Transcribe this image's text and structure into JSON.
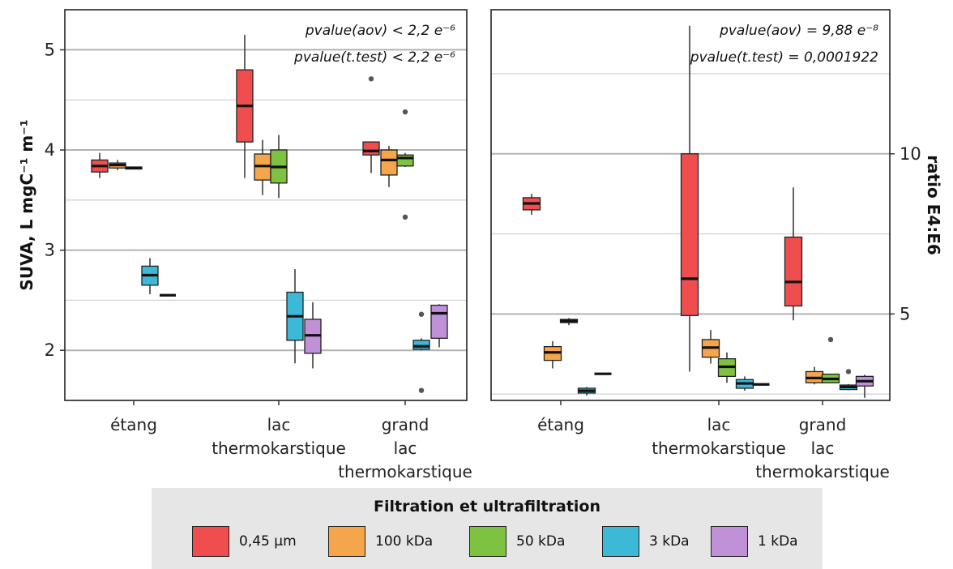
{
  "chart_data": [
    {
      "type": "box",
      "panel": "left",
      "ylabel": "SUVA, L mgC⁻¹ m⁻¹",
      "ylim": [
        1.5,
        5.4
      ],
      "yticks": [
        2,
        3,
        4,
        5
      ],
      "categories": [
        "étang",
        "lac thermokarstique",
        "grand lac thermokarstique"
      ],
      "annotations": [
        "pvalue(aov) < 2,2 e⁻⁶",
        "pvalue(t.test) < 2,2 e⁻⁶"
      ],
      "series": [
        {
          "name": "0,45 µm",
          "color": "#f04e4e",
          "boxes": [
            {
              "min": 3.72,
              "q1": 3.78,
              "median": 3.84,
              "q3": 3.9,
              "max": 3.97,
              "outliers": []
            },
            {
              "min": 3.72,
              "q1": 4.08,
              "median": 4.44,
              "q3": 4.8,
              "max": 5.15,
              "outliers": []
            },
            {
              "min": 3.77,
              "q1": 3.95,
              "median": 3.99,
              "q3": 4.08,
              "max": 4.08,
              "outliers": [
                4.71
              ]
            }
          ]
        },
        {
          "name": "100 kDa",
          "color": "#f5a54a",
          "boxes": [
            {
              "min": 3.8,
              "q1": 3.82,
              "median": 3.85,
              "q3": 3.87,
              "max": 3.9,
              "outliers": []
            },
            {
              "min": 3.55,
              "q1": 3.7,
              "median": 3.84,
              "q3": 3.96,
              "max": 4.1,
              "outliers": []
            },
            {
              "min": 3.63,
              "q1": 3.75,
              "median": 3.9,
              "q3": 4.0,
              "max": 4.04,
              "outliers": []
            }
          ]
        },
        {
          "name": "50 kDa",
          "color": "#7ec242",
          "boxes": [
            {
              "min": 3.81,
              "q1": 3.81,
              "median": 3.82,
              "q3": 3.83,
              "max": 3.83,
              "outliers": []
            },
            {
              "min": 3.52,
              "q1": 3.67,
              "median": 3.83,
              "q3": 4.0,
              "max": 4.15,
              "outliers": []
            },
            {
              "min": 3.83,
              "q1": 3.84,
              "median": 3.92,
              "q3": 3.95,
              "max": 3.97,
              "outliers": [
                4.38,
                3.33
              ]
            }
          ]
        },
        {
          "name": "3 kDa",
          "color": "#3bb9d7",
          "boxes": [
            {
              "min": 2.56,
              "q1": 2.65,
              "median": 2.75,
              "q3": 2.84,
              "max": 2.92,
              "outliers": []
            },
            {
              "min": 1.87,
              "q1": 2.1,
              "median": 2.34,
              "q3": 2.58,
              "max": 2.81,
              "outliers": []
            },
            {
              "min": 2.0,
              "q1": 2.01,
              "median": 2.04,
              "q3": 2.1,
              "max": 2.12,
              "outliers": [
                2.36,
                1.6
              ]
            }
          ]
        },
        {
          "name": "1 kDa",
          "color": "#c191d7",
          "boxes": [
            {
              "min": 2.55,
              "q1": 2.55,
              "median": 2.55,
              "q3": 2.55,
              "max": 2.55,
              "outliers": []
            },
            {
              "min": 1.82,
              "q1": 1.97,
              "median": 2.15,
              "q3": 2.31,
              "max": 2.48,
              "outliers": []
            },
            {
              "min": 2.03,
              "q1": 2.12,
              "median": 2.37,
              "q3": 2.45,
              "max": 2.46,
              "outliers": []
            }
          ]
        }
      ]
    },
    {
      "type": "box",
      "panel": "right",
      "ylabel": "ratio E4:E6",
      "ylim": [
        2.3,
        14.5
      ],
      "yticks": [
        5,
        10
      ],
      "categories": [
        "étang",
        "lac thermokarstique",
        "grand lac thermokarstique"
      ],
      "annotations": [
        "pvalue(aov) = 9,88 e⁻⁸",
        "pvalue(t.test) = 0,0001922"
      ],
      "series": [
        {
          "name": "0,45 µm",
          "color": "#f04e4e",
          "boxes": [
            {
              "min": 8.1,
              "q1": 8.25,
              "median": 8.45,
              "q3": 8.63,
              "max": 8.75,
              "outliers": []
            },
            {
              "min": 3.2,
              "q1": 4.95,
              "median": 6.1,
              "q3": 10.0,
              "max": 14.0,
              "outliers": []
            },
            {
              "min": 4.8,
              "q1": 5.25,
              "median": 6.0,
              "q3": 7.4,
              "max": 8.95,
              "outliers": []
            }
          ]
        },
        {
          "name": "100 kDa",
          "color": "#f5a54a",
          "boxes": [
            {
              "min": 3.3,
              "q1": 3.55,
              "median": 3.8,
              "q3": 3.98,
              "max": 4.15,
              "outliers": []
            },
            {
              "min": 3.45,
              "q1": 3.65,
              "median": 3.95,
              "q3": 4.2,
              "max": 4.5,
              "outliers": []
            },
            {
              "min": 2.8,
              "q1": 2.85,
              "median": 3.0,
              "q3": 3.2,
              "max": 3.35,
              "outliers": []
            }
          ]
        },
        {
          "name": "50 kDa",
          "color": "#7ec242",
          "boxes": [
            {
              "min": 4.65,
              "q1": 4.73,
              "median": 4.78,
              "q3": 4.83,
              "max": 4.87,
              "outliers": []
            },
            {
              "min": 2.85,
              "q1": 3.05,
              "median": 3.35,
              "q3": 3.6,
              "max": 3.8,
              "outliers": []
            },
            {
              "min": 2.85,
              "q1": 2.85,
              "median": 2.97,
              "q3": 3.12,
              "max": 3.12,
              "outliers": [
                4.2
              ]
            }
          ]
        },
        {
          "name": "3 kDa",
          "color": "#3bb9d7",
          "boxes": [
            {
              "min": 2.45,
              "q1": 2.53,
              "median": 2.6,
              "q3": 2.68,
              "max": 2.72,
              "outliers": []
            },
            {
              "min": 2.6,
              "q1": 2.68,
              "median": 2.83,
              "q3": 2.95,
              "max": 3.05,
              "outliers": []
            },
            {
              "min": 2.62,
              "q1": 2.64,
              "median": 2.72,
              "q3": 2.78,
              "max": 2.81,
              "outliers": [
                3.2
              ]
            }
          ]
        },
        {
          "name": "1 kDa",
          "color": "#c191d7",
          "boxes": [
            {
              "min": 3.13,
              "q1": 3.13,
              "median": 3.13,
              "q3": 3.13,
              "max": 3.13,
              "outliers": []
            },
            {
              "min": 2.8,
              "q1": 2.8,
              "median": 2.8,
              "q3": 2.8,
              "max": 2.8,
              "outliers": []
            },
            {
              "min": 2.38,
              "q1": 2.75,
              "median": 2.9,
              "q3": 3.05,
              "max": 3.1,
              "outliers": []
            }
          ]
        }
      ]
    }
  ],
  "legend": {
    "title": "Filtration et ultrafiltration",
    "items": [
      {
        "label": "0,45 µm",
        "color": "#f04e4e"
      },
      {
        "label": "100 kDa",
        "color": "#f5a54a"
      },
      {
        "label": "50 kDa",
        "color": "#7ec242"
      },
      {
        "label": "3 kDa",
        "color": "#3bb9d7"
      },
      {
        "label": "1 kDa",
        "color": "#c191d7"
      }
    ]
  }
}
